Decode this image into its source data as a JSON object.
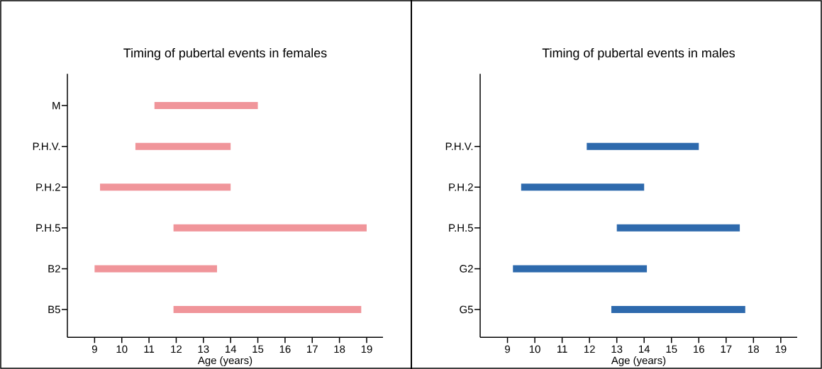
{
  "chart_data": [
    {
      "type": "bar",
      "orientation": "horizontal",
      "title": "Timing of pubertal events in females",
      "xlabel": "Age (years)",
      "categories": [
        "M",
        "P.H.V.",
        "P.H.2",
        "P.H.5",
        "B2",
        "B5"
      ],
      "base": [
        11.2,
        10.5,
        9.2,
        11.9,
        9.0,
        11.9
      ],
      "values": [
        3.8,
        3.5,
        4.8,
        7.1,
        4.5,
        6.9
      ],
      "color": "#f0959a",
      "xlim": [
        8,
        19.6
      ],
      "xticks": [
        9,
        10,
        11,
        12,
        13,
        14,
        15,
        16,
        17,
        18,
        19
      ]
    },
    {
      "type": "bar",
      "orientation": "horizontal",
      "title": "Timing of pubertal events in males",
      "xlabel": "Age (years)",
      "categories": [
        "P.H.V.",
        "P.H.2",
        "P.H.5",
        "G2",
        "G5"
      ],
      "base": [
        11.9,
        9.5,
        13.0,
        9.2,
        12.8
      ],
      "values": [
        4.1,
        4.5,
        4.5,
        4.9,
        4.9
      ],
      "color": "#2e6aad",
      "xlim": [
        8,
        19.6
      ],
      "xticks": [
        9,
        10,
        11,
        12,
        13,
        14,
        15,
        16,
        17,
        18,
        19
      ]
    }
  ]
}
